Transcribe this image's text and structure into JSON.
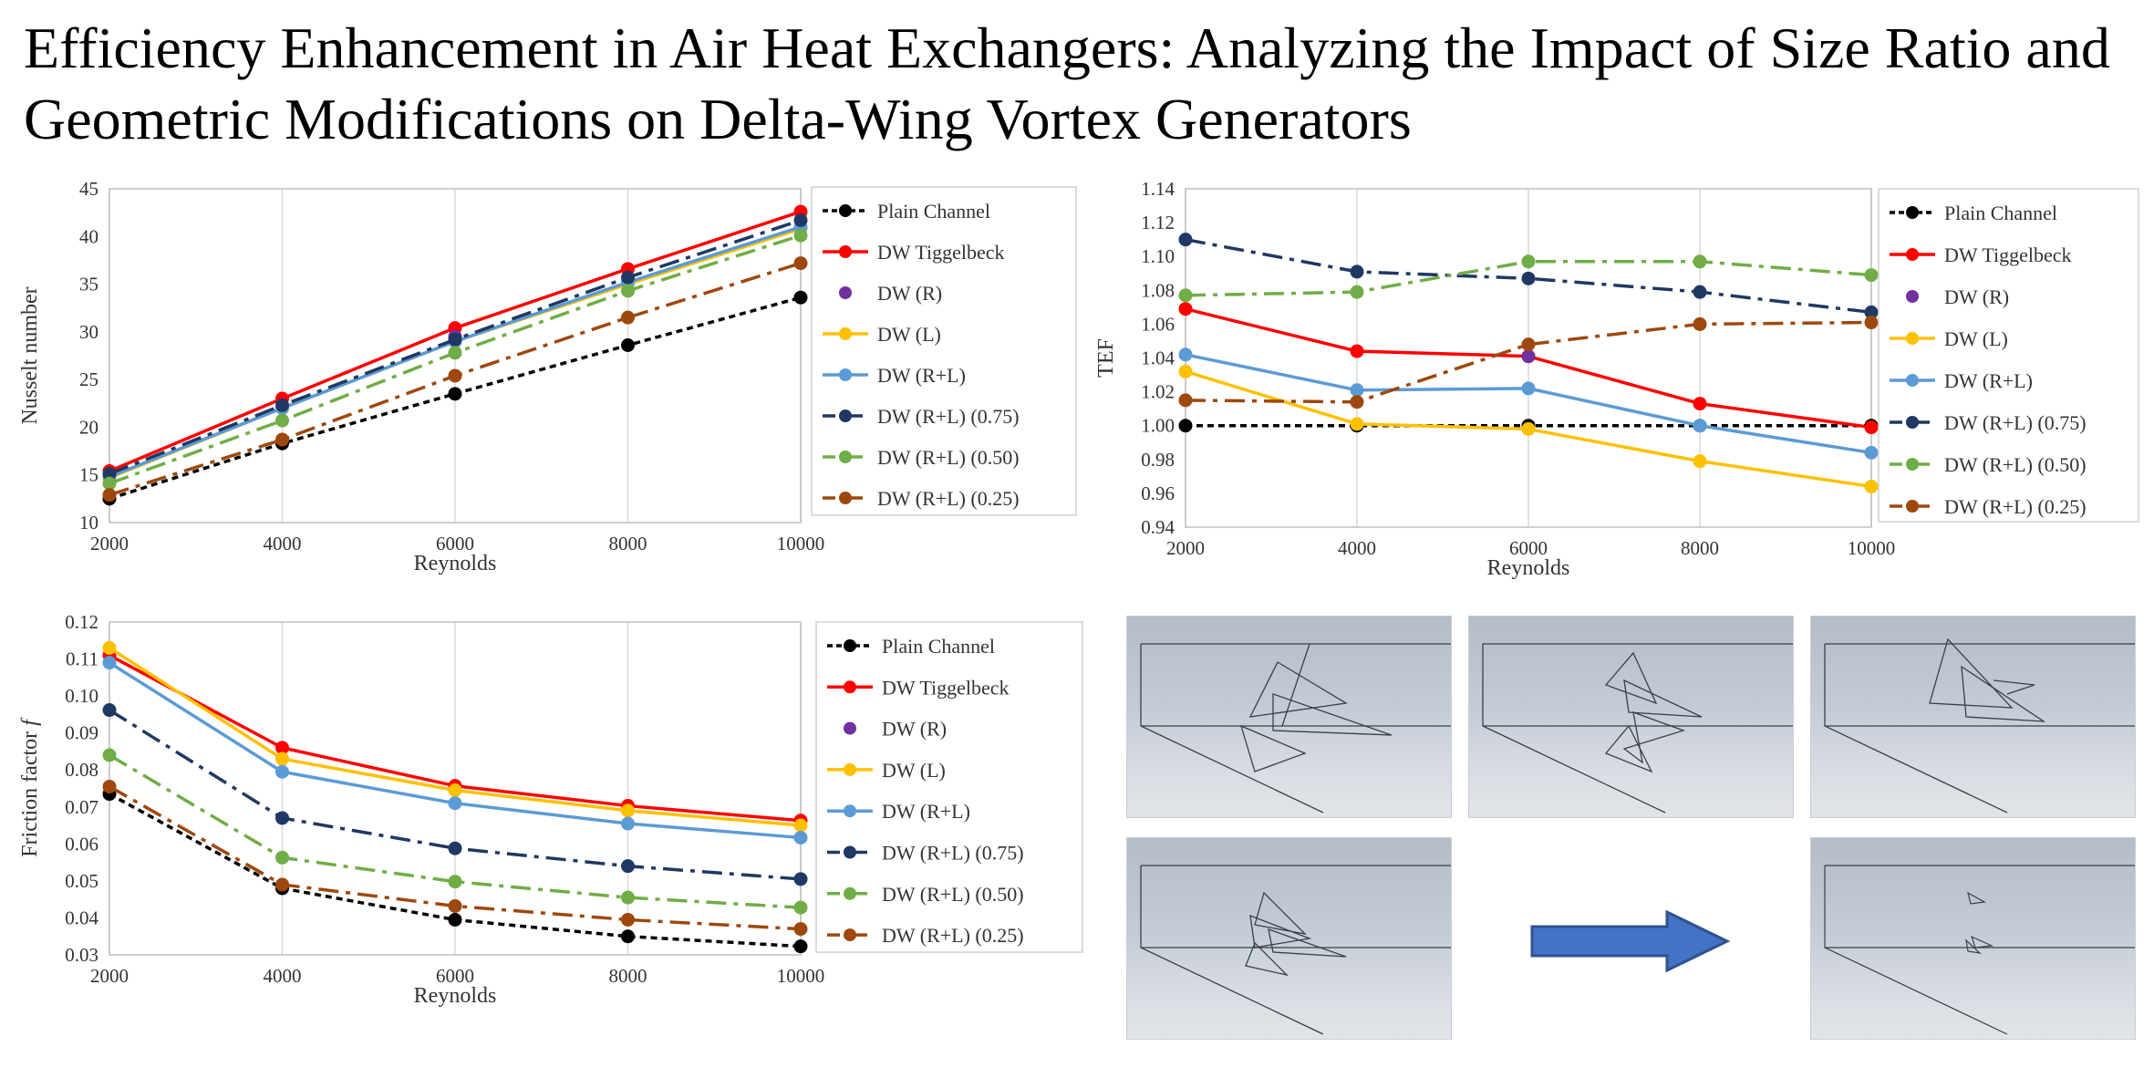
{
  "title": "Efficiency Enhancement in Air Heat Exchangers: Analyzing the Impact of Size Ratio and Geometric Modifications on Delta-Wing Vortex Generators",
  "legend_labels": [
    "Plain Channel",
    "DW Tiggelbeck",
    "DW (R)",
    "DW (L)",
    "DW (R+L)",
    "DW (R+L) (0.75)",
    "DW (R+L) (0.50)",
    "DW (R+L) (0.25)"
  ],
  "colors": {
    "plain": "#000000",
    "tiggelbeck": "#ff0000",
    "dw_r": "#7030a0",
    "dw_l": "#ffc000",
    "dw_rl": "#5b9bd5",
    "dw_rl_075": "#203864",
    "dw_rl_050": "#70ad47",
    "dw_rl_025": "#9e480e",
    "arrow": "#4472c4"
  },
  "chart_data": [
    {
      "id": "nusselt",
      "type": "line",
      "x": [
        2000,
        4000,
        6000,
        8000,
        10000
      ],
      "xlabel": "Reynolds",
      "ylabel": "Nusselt number",
      "ylim": [
        10,
        45
      ],
      "yticks": [
        10,
        15,
        20,
        25,
        30,
        35,
        40,
        45
      ],
      "ytick_decimals": 0,
      "grid": "vertical",
      "legend": "right",
      "series": [
        {
          "name": "Plain Channel",
          "values": [
            12.5,
            18.3,
            23.5,
            28.6,
            33.6
          ]
        },
        {
          "name": "DW Tiggelbeck",
          "values": [
            15.4,
            23.0,
            30.4,
            36.6,
            42.6
          ]
        },
        {
          "name": "DW (R)",
          "values": [
            null,
            null,
            29.5,
            null,
            null
          ]
        },
        {
          "name": "DW (L)",
          "values": [
            14.7,
            22.0,
            29.0,
            35.0,
            40.8
          ]
        },
        {
          "name": "DW (R+L)",
          "values": [
            14.8,
            22.0,
            29.0,
            35.2,
            41.0
          ]
        },
        {
          "name": "DW (R+L) (0.75)",
          "values": [
            15.1,
            22.3,
            29.2,
            35.7,
            41.7
          ]
        },
        {
          "name": "DW (R+L) (0.50)",
          "values": [
            14.1,
            20.7,
            27.8,
            34.3,
            40.1
          ]
        },
        {
          "name": "DW (R+L) (0.25)",
          "values": [
            12.9,
            18.7,
            25.4,
            31.5,
            37.2
          ]
        }
      ]
    },
    {
      "id": "tef",
      "type": "line",
      "x": [
        2000,
        4000,
        6000,
        8000,
        10000
      ],
      "xlabel": "Reynolds",
      "ylabel": "TEF",
      "ylim": [
        0.94,
        1.14
      ],
      "yticks": [
        0.94,
        0.96,
        0.98,
        1.0,
        1.02,
        1.04,
        1.06,
        1.08,
        1.1,
        1.12,
        1.14
      ],
      "ytick_decimals": 2,
      "grid": "vertical",
      "legend": "right",
      "series": [
        {
          "name": "Plain Channel",
          "values": [
            1.0,
            1.0,
            1.0,
            1.0,
            1.0
          ]
        },
        {
          "name": "DW Tiggelbeck",
          "values": [
            1.069,
            1.044,
            1.041,
            1.013,
            0.999
          ]
        },
        {
          "name": "DW (R)",
          "values": [
            null,
            null,
            1.041,
            null,
            null
          ]
        },
        {
          "name": "DW (L)",
          "values": [
            1.032,
            1.001,
            0.998,
            0.979,
            0.964
          ]
        },
        {
          "name": "DW (R+L)",
          "values": [
            1.042,
            1.021,
            1.022,
            1.0,
            0.984
          ]
        },
        {
          "name": "DW (R+L) (0.75)",
          "values": [
            1.11,
            1.091,
            1.087,
            1.079,
            1.067
          ]
        },
        {
          "name": "DW (R+L) (0.50)",
          "values": [
            1.077,
            1.079,
            1.097,
            1.097,
            1.089
          ]
        },
        {
          "name": "DW (R+L) (0.25)",
          "values": [
            1.015,
            1.014,
            1.048,
            1.06,
            1.061
          ]
        }
      ]
    },
    {
      "id": "friction",
      "type": "line",
      "x": [
        2000,
        4000,
        6000,
        8000,
        10000
      ],
      "xlabel": "Reynolds",
      "ylabel": "Friction factor f",
      "ylim": [
        0.03,
        0.12
      ],
      "yticks": [
        0.03,
        0.04,
        0.05,
        0.06,
        0.07,
        0.08,
        0.09,
        0.1,
        0.11,
        0.12
      ],
      "ytick_decimals": 2,
      "grid": "vertical",
      "legend": "right",
      "series": [
        {
          "name": "Plain Channel",
          "values": [
            0.0735,
            0.048,
            0.0395,
            0.035,
            0.0323
          ]
        },
        {
          "name": "DW Tiggelbeck",
          "values": [
            0.111,
            0.086,
            0.0757,
            0.0703,
            0.0663
          ]
        },
        {
          "name": "DW (R)",
          "values": [
            null,
            null,
            null,
            null,
            null
          ]
        },
        {
          "name": "DW (L)",
          "values": [
            0.113,
            0.083,
            0.0745,
            0.069,
            0.065
          ]
        },
        {
          "name": "DW (R+L)",
          "values": [
            0.109,
            0.0795,
            0.071,
            0.0655,
            0.0617
          ]
        },
        {
          "name": "DW (R+L) (0.75)",
          "values": [
            0.0962,
            0.067,
            0.0588,
            0.054,
            0.0505
          ]
        },
        {
          "name": "DW (R+L) (0.50)",
          "values": [
            0.084,
            0.0563,
            0.0498,
            0.0455,
            0.0428
          ]
        },
        {
          "name": "DW (R+L) (0.25)",
          "values": [
            0.0755,
            0.049,
            0.0432,
            0.0395,
            0.037
          ]
        }
      ]
    }
  ]
}
